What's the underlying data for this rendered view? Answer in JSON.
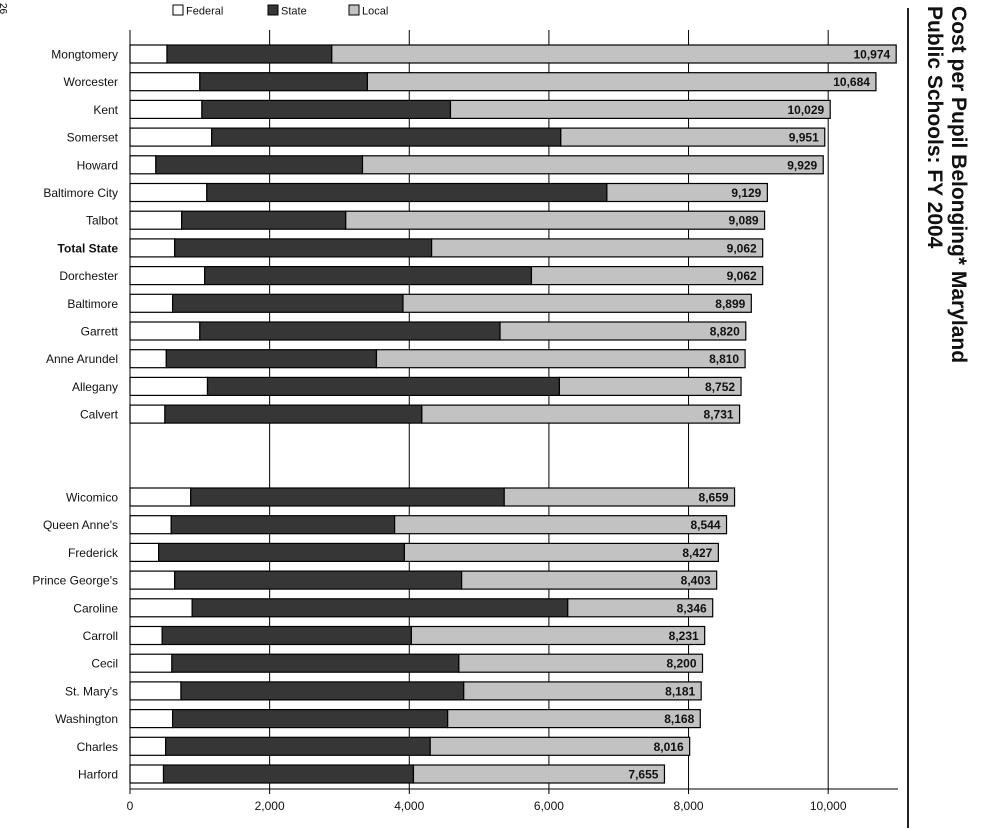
{
  "page_number": "26",
  "colors": {
    "federal": "#ffffff",
    "state": "#363636",
    "local": "#c2c2c2",
    "outline": "#000000"
  },
  "chart_data": {
    "type": "bar",
    "orientation": "horizontal",
    "stacked": true,
    "title_lines": [
      "Cost per Pupil Belonging* Maryland",
      "Public Schools: FY 2004"
    ],
    "legend": [
      "Federal",
      "State",
      "Local"
    ],
    "xlim": [
      0,
      11000
    ],
    "x_ticks": [
      "0",
      "2,000",
      "4,000",
      "6,000",
      "8,000",
      "10,000"
    ],
    "x_tick_values": [
      0,
      2000,
      4000,
      6000,
      8000,
      10000
    ],
    "groups": [
      {
        "categories": [
          "Mongtomery",
          "Worcester",
          "Kent",
          "Somerset",
          "Howard",
          "Baltimore City",
          "Talbot",
          "Total State",
          "Dorchester",
          "Baltimore",
          "Garrett",
          "Anne Arundel",
          "Allegany",
          "Calvert"
        ],
        "bold": [
          false,
          false,
          false,
          false,
          false,
          false,
          false,
          true,
          false,
          false,
          false,
          false,
          false,
          false
        ],
        "series": [
          {
            "name": "Federal",
            "values": [
              530,
              1000,
              1030,
              1170,
              370,
              1100,
              740,
              640,
              1070,
              610,
              1000,
              520,
              1110,
              500
            ]
          },
          {
            "name": "State",
            "values": [
              2360,
              2400,
              3560,
              5000,
              2960,
              5730,
              2350,
              3680,
              4680,
              3300,
              4300,
              3010,
              5040,
              3680
            ]
          },
          {
            "name": "Local",
            "values": [
              8084,
              7284,
              5439,
              3781,
              6599,
              2299,
              5999,
              4742,
              3312,
              4989,
              3520,
              5280,
              2602,
              4551
            ]
          }
        ],
        "totals": [
          10974,
          10684,
          10029,
          9951,
          9929,
          9129,
          9089,
          9062,
          9062,
          8899,
          8820,
          8810,
          8752,
          8731
        ],
        "total_labels": [
          "10,974",
          "10,684",
          "10,029",
          "9,951",
          "9,929",
          "9,129",
          "9,089",
          "9,062",
          "9,062",
          "8,899",
          "8,820",
          "8,810",
          "8,752",
          "8,731"
        ]
      },
      {
        "categories": [
          "Wicomico",
          "Queen Anne's",
          "Frederick",
          "Prince George's",
          "Caroline",
          "Carroll",
          "Cecil",
          "St. Mary's",
          "Washington",
          "Charles",
          "Harford"
        ],
        "bold": [
          false,
          false,
          false,
          false,
          false,
          false,
          false,
          false,
          false,
          false,
          false
        ],
        "series": [
          {
            "name": "Federal",
            "values": [
              870,
              590,
              410,
              640,
              890,
              460,
              600,
              730,
              610,
              510,
              480
            ]
          },
          {
            "name": "State",
            "values": [
              4490,
              3200,
              3520,
              4110,
              5380,
              3570,
              4110,
              4050,
              3940,
              3790,
              3580
            ]
          },
          {
            "name": "Local",
            "values": [
              3299,
              4754,
              4497,
              3653,
              2076,
              4201,
              3490,
              3401,
              3618,
              3716,
              3595
            ]
          }
        ],
        "totals": [
          8659,
          8544,
          8427,
          8403,
          8346,
          8231,
          8200,
          8181,
          8168,
          8016,
          7655
        ],
        "total_labels": [
          "8,659",
          "8,544",
          "8,427",
          "8,403",
          "8,346",
          "8,231",
          "8,200",
          "8,181",
          "8,168",
          "8,016",
          "7,655"
        ]
      }
    ]
  }
}
